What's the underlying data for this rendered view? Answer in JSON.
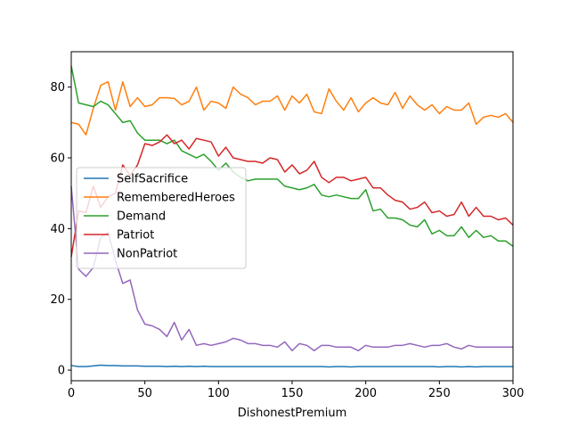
{
  "chart_data": {
    "type": "line",
    "title": "",
    "xlabel": "DishonestPremium",
    "ylabel": "",
    "xlim": [
      0,
      300
    ],
    "ylim": [
      -3,
      90
    ],
    "xticks": [
      0,
      50,
      100,
      150,
      200,
      250,
      300
    ],
    "yticks": [
      0,
      20,
      40,
      60,
      80
    ],
    "grid": false,
    "legend_position": "center-left",
    "x": [
      0,
      5,
      10,
      15,
      20,
      25,
      30,
      35,
      40,
      45,
      50,
      55,
      60,
      65,
      70,
      75,
      80,
      85,
      90,
      95,
      100,
      105,
      110,
      115,
      120,
      125,
      130,
      135,
      140,
      145,
      150,
      155,
      160,
      165,
      170,
      175,
      180,
      185,
      190,
      195,
      200,
      205,
      210,
      215,
      220,
      225,
      230,
      235,
      240,
      245,
      250,
      255,
      260,
      265,
      270,
      275,
      280,
      285,
      290,
      295,
      300
    ],
    "series": [
      {
        "name": "SelfSacrifice",
        "color": "#1f77b4",
        "values": [
          1.3,
          1.0,
          1.0,
          1.2,
          1.4,
          1.3,
          1.3,
          1.2,
          1.2,
          1.2,
          1.1,
          1.1,
          1.1,
          1.0,
          1.1,
          1.0,
          1.1,
          1.0,
          1.1,
          1.0,
          1.0,
          1.0,
          1.0,
          1.0,
          1.0,
          1.0,
          1.0,
          1.0,
          1.0,
          1.0,
          1.0,
          1.0,
          1.0,
          1.0,
          1.0,
          0.9,
          1.0,
          1.0,
          0.9,
          1.0,
          1.0,
          1.0,
          1.0,
          1.0,
          1.0,
          1.0,
          1.0,
          1.0,
          1.0,
          1.0,
          0.9,
          1.0,
          1.0,
          0.9,
          1.0,
          0.9,
          1.0,
          1.0,
          1.0,
          1.0,
          1.0
        ]
      },
      {
        "name": "RememberedHeroes",
        "color": "#ff7f0e",
        "values": [
          70,
          69.5,
          66.5,
          74,
          80.5,
          81.5,
          73.5,
          81.5,
          74.5,
          77,
          74.5,
          75,
          77,
          77,
          76.8,
          75,
          76,
          80,
          73.5,
          76,
          75.5,
          74,
          80,
          78,
          77,
          75,
          76,
          76,
          77.5,
          73.5,
          77.5,
          75.5,
          78,
          73,
          72.5,
          79.5,
          76,
          73.5,
          77,
          73,
          75.5,
          77,
          75.5,
          75,
          78.5,
          74,
          77.5,
          75,
          73.5,
          75,
          72.5,
          74.5,
          73.5,
          73.5,
          75.5,
          69.5,
          71.5,
          72,
          71.5,
          72.5,
          70
        ]
      },
      {
        "name": "Demand",
        "color": "#2ca02c",
        "values": [
          86,
          75.5,
          75,
          74.5,
          76,
          75,
          72.5,
          70,
          70.5,
          67,
          65,
          65,
          65,
          64,
          65,
          62,
          61,
          60,
          61,
          59,
          56.5,
          58.5,
          56,
          54.5,
          53.5,
          54,
          54,
          54,
          54,
          52,
          51.5,
          51,
          51.5,
          52.5,
          49.5,
          49,
          49.5,
          49,
          48.5,
          48.5,
          51,
          45,
          45.5,
          43,
          43,
          42.5,
          41,
          40.5,
          42.5,
          38.5,
          39.5,
          38,
          38,
          40.5,
          37.5,
          39.5,
          37.5,
          38,
          36.5,
          36.5,
          35
        ]
      },
      {
        "name": "Patriot",
        "color": "#d62728",
        "values": [
          32,
          45,
          44.5,
          52,
          46,
          49,
          50,
          58,
          55,
          58,
          64,
          63.5,
          64.5,
          66.5,
          64,
          65,
          62.5,
          65.5,
          65,
          64.5,
          60.5,
          63,
          60,
          59.5,
          59,
          59,
          58.5,
          60,
          59.5,
          56,
          58,
          55.5,
          56.5,
          59,
          54.5,
          53,
          54.5,
          54.5,
          53.5,
          54,
          54.5,
          51.5,
          51.5,
          49.5,
          48,
          47.5,
          45.5,
          46,
          47.5,
          44.5,
          45,
          43.5,
          44,
          47.5,
          43.5,
          46,
          43.5,
          43.5,
          42.5,
          43,
          41
        ]
      },
      {
        "name": "NonPatriot",
        "color": "#9467bd",
        "values": [
          52,
          28.5,
          26.5,
          29,
          37.5,
          39,
          31,
          24.5,
          25.5,
          17,
          13,
          12.5,
          11.5,
          9.5,
          13.5,
          8.5,
          11.5,
          7,
          7.5,
          7,
          7.5,
          8,
          9,
          8.5,
          7.5,
          7.5,
          7,
          7,
          6.5,
          8,
          5.5,
          7.5,
          7,
          5.5,
          7,
          7,
          6.5,
          6.5,
          6.5,
          5.5,
          7,
          6.5,
          6.5,
          6.5,
          7,
          7,
          7.5,
          7,
          6.5,
          7,
          7,
          7.5,
          6.5,
          6,
          7,
          6.5,
          6.5,
          6.5,
          6.5,
          6.5,
          6.5
        ]
      }
    ]
  }
}
